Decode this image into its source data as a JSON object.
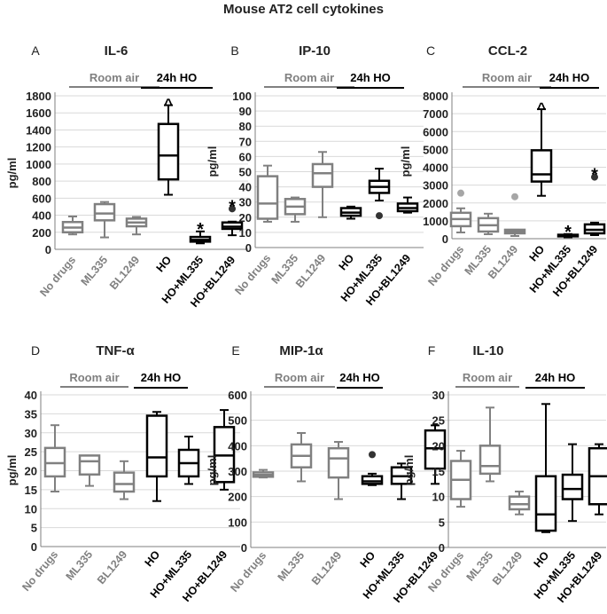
{
  "title": "Mouse AT2 cell cytokines",
  "group_labels": {
    "room_air": "Room air",
    "ho": "24h HO"
  },
  "colors": {
    "room_air": "#808080",
    "ho": "#000000",
    "axis": "#7f7f7f",
    "grid": "#d9d9d9",
    "outlier_gray": "#a6a6a6"
  },
  "chart_data": [
    {
      "type": "box",
      "letter": "A",
      "title": "IL-6",
      "ylabel": "pg/ml",
      "ylim": [
        0,
        1800
      ],
      "yticks": [
        0,
        200,
        400,
        600,
        800,
        1000,
        1200,
        1400,
        1600,
        1800
      ],
      "categories": [
        "No drugs",
        "ML335",
        "BL1249",
        "HO",
        "HO+ML335",
        "HO+BL1249"
      ],
      "boxes": [
        {
          "min": 175,
          "q1": 200,
          "median": 255,
          "q3": 320,
          "max": 385,
          "group": "room_air",
          "outliers": [],
          "annotation": ""
        },
        {
          "min": 140,
          "q1": 340,
          "median": 420,
          "q3": 530,
          "max": 555,
          "group": "room_air",
          "outliers": [],
          "annotation": ""
        },
        {
          "min": 175,
          "q1": 270,
          "median": 315,
          "q3": 360,
          "max": 380,
          "group": "room_air",
          "outliers": [],
          "annotation": ""
        },
        {
          "min": 640,
          "q1": 820,
          "median": 1100,
          "q3": 1470,
          "max": 1690,
          "group": "ho",
          "outliers": [],
          "annotation": "^"
        },
        {
          "min": 70,
          "q1": 90,
          "median": 110,
          "q3": 145,
          "max": 210,
          "group": "ho",
          "outliers": [],
          "annotation": "*"
        },
        {
          "min": 165,
          "q1": 240,
          "median": 265,
          "q3": 315,
          "max": 325,
          "group": "ho",
          "outliers": [
            475
          ],
          "annotation": "*"
        }
      ]
    },
    {
      "type": "box",
      "letter": "B",
      "title": "IP-10",
      "ylabel": "pg/ml",
      "ylim": [
        0,
        100
      ],
      "yticks": [
        0,
        10,
        20,
        30,
        40,
        50,
        60,
        70,
        80,
        90,
        100
      ],
      "categories": [
        "No drugs",
        "ML335",
        "BL1249",
        "HO",
        "HO+ML335",
        "HO+BL1249"
      ],
      "boxes": [
        {
          "min": 17,
          "q1": 19,
          "median": 29,
          "q3": 47,
          "max": 54,
          "group": "room_air",
          "outliers": [],
          "annotation": ""
        },
        {
          "min": 17,
          "q1": 22,
          "median": 27,
          "q3": 32,
          "max": 33,
          "group": "room_air",
          "outliers": [],
          "annotation": ""
        },
        {
          "min": 20,
          "q1": 40,
          "median": 49,
          "q3": 55,
          "max": 63,
          "group": "room_air",
          "outliers": [],
          "annotation": ""
        },
        {
          "min": 19,
          "q1": 21,
          "median": 23,
          "q3": 26,
          "max": 27,
          "group": "ho",
          "outliers": [],
          "annotation": ""
        },
        {
          "min": 31,
          "q1": 36,
          "median": 40,
          "q3": 44,
          "max": 52,
          "group": "ho",
          "outliers": [
            21
          ],
          "annotation": ""
        },
        {
          "min": 23,
          "q1": 24,
          "median": 26,
          "q3": 29,
          "max": 33,
          "group": "ho",
          "outliers": [],
          "annotation": ""
        }
      ]
    },
    {
      "type": "box",
      "letter": "C",
      "title": "CCL-2",
      "ylabel": "pg/ml",
      "ylim": [
        0,
        8000
      ],
      "yticks": [
        0,
        1000,
        2000,
        3000,
        4000,
        5000,
        6000,
        7000,
        8000
      ],
      "categories": [
        "No drugs",
        "ML335",
        "BL1249",
        "HO",
        "HO+ML335",
        "HO+BL1249"
      ],
      "boxes": [
        {
          "min": 350,
          "q1": 700,
          "median": 1100,
          "q3": 1450,
          "max": 1700,
          "group": "room_air",
          "outliers": [
            2550
          ],
          "annotation": ""
        },
        {
          "min": 250,
          "q1": 400,
          "median": 750,
          "q3": 1150,
          "max": 1400,
          "group": "room_air",
          "outliers": [],
          "annotation": ""
        },
        {
          "min": 150,
          "q1": 300,
          "median": 400,
          "q3": 500,
          "max": 500,
          "group": "room_air",
          "outliers": [
            2350
          ],
          "annotation": ""
        },
        {
          "min": 2400,
          "q1": 3200,
          "median": 3600,
          "q3": 4950,
          "max": 7250,
          "group": "ho",
          "outliers": [],
          "annotation": "^"
        },
        {
          "min": 80,
          "q1": 130,
          "median": 170,
          "q3": 220,
          "max": 260,
          "group": "ho",
          "outliers": [],
          "annotation": "*"
        },
        {
          "min": 200,
          "q1": 300,
          "median": 500,
          "q3": 800,
          "max": 900,
          "group": "ho",
          "outliers": [
            3450
          ],
          "annotation": "*"
        }
      ]
    },
    {
      "type": "box",
      "letter": "D",
      "title": "TNF-α",
      "ylabel": "pg/ml",
      "ylim": [
        0,
        40
      ],
      "yticks": [
        0,
        5,
        10,
        15,
        20,
        25,
        30,
        35,
        40
      ],
      "categories": [
        "No drugs",
        "ML335",
        "BL1249",
        "HO",
        "HO+ML335",
        "HO+BL1249"
      ],
      "boxes": [
        {
          "min": 14.5,
          "q1": 18.5,
          "median": 22,
          "q3": 26,
          "max": 32,
          "group": "room_air",
          "outliers": [],
          "annotation": ""
        },
        {
          "min": 16,
          "q1": 19,
          "median": 22.5,
          "q3": 24,
          "max": 24,
          "group": "room_air",
          "outliers": [],
          "annotation": ""
        },
        {
          "min": 12.5,
          "q1": 14.5,
          "median": 16.5,
          "q3": 19.5,
          "max": 22.5,
          "group": "room_air",
          "outliers": [],
          "annotation": ""
        },
        {
          "min": 12,
          "q1": 18.5,
          "median": 23.5,
          "q3": 34.5,
          "max": 35.5,
          "group": "ho",
          "outliers": [],
          "annotation": ""
        },
        {
          "min": 16.5,
          "q1": 18.5,
          "median": 22,
          "q3": 25.5,
          "max": 29,
          "group": "ho",
          "outliers": [],
          "annotation": ""
        },
        {
          "min": 15,
          "q1": 17,
          "median": 24,
          "q3": 31.5,
          "max": 36,
          "group": "ho",
          "outliers": [],
          "annotation": ""
        }
      ]
    },
    {
      "type": "box",
      "letter": "E",
      "title": "MIP-1α",
      "ylabel": "pg/ml",
      "ylim": [
        0,
        600
      ],
      "yticks": [
        0,
        100,
        200,
        300,
        400,
        500,
        600
      ],
      "categories": [
        "No drugs",
        "ML335",
        "BL1249",
        "HO",
        "HO+ML335",
        "HO+BL1249"
      ],
      "boxes": [
        {
          "min": 275,
          "q1": 278,
          "median": 285,
          "q3": 295,
          "max": 305,
          "group": "room_air",
          "outliers": [],
          "annotation": ""
        },
        {
          "min": 260,
          "q1": 315,
          "median": 360,
          "q3": 405,
          "max": 450,
          "group": "room_air",
          "outliers": [],
          "annotation": ""
        },
        {
          "min": 190,
          "q1": 275,
          "median": 350,
          "q3": 390,
          "max": 415,
          "group": "room_air",
          "outliers": [],
          "annotation": ""
        },
        {
          "min": 245,
          "q1": 250,
          "median": 260,
          "q3": 280,
          "max": 290,
          "group": "ho",
          "outliers": [
            365
          ],
          "annotation": ""
        },
        {
          "min": 190,
          "q1": 250,
          "median": 280,
          "q3": 315,
          "max": 330,
          "group": "ho",
          "outliers": [],
          "annotation": ""
        },
        {
          "min": 250,
          "q1": 310,
          "median": 390,
          "q3": 460,
          "max": 480,
          "group": "ho",
          "outliers": [],
          "annotation": ""
        }
      ]
    },
    {
      "type": "box",
      "letter": "F",
      "title": "IL-10",
      "ylabel": "pg/ml",
      "ylim": [
        0,
        30
      ],
      "yticks": [
        0,
        5,
        10,
        15,
        20,
        25,
        30
      ],
      "categories": [
        "No drugs",
        "ML335",
        "BL1249",
        "HO",
        "HO+ML335",
        "HO+BL1249"
      ],
      "boxes": [
        {
          "min": 8,
          "q1": 9.5,
          "median": 13.3,
          "q3": 17,
          "max": 19,
          "group": "room_air",
          "outliers": [],
          "annotation": ""
        },
        {
          "min": 13,
          "q1": 14.5,
          "median": 16,
          "q3": 20,
          "max": 27.5,
          "group": "room_air",
          "outliers": [],
          "annotation": ""
        },
        {
          "min": 6.5,
          "q1": 7.5,
          "median": 8.5,
          "q3": 10,
          "max": 11,
          "group": "room_air",
          "outliers": [],
          "annotation": ""
        },
        {
          "min": 3,
          "q1": 3.3,
          "median": 6.5,
          "q3": 14,
          "max": 28.2,
          "group": "ho",
          "outliers": [],
          "annotation": ""
        },
        {
          "min": 5.2,
          "q1": 9.5,
          "median": 11.5,
          "q3": 14.3,
          "max": 20.3,
          "group": "ho",
          "outliers": [],
          "annotation": ""
        },
        {
          "min": 6.5,
          "q1": 8.5,
          "median": 14,
          "q3": 19.5,
          "max": 20.3,
          "group": "ho",
          "outliers": [],
          "annotation": ""
        }
      ]
    }
  ]
}
